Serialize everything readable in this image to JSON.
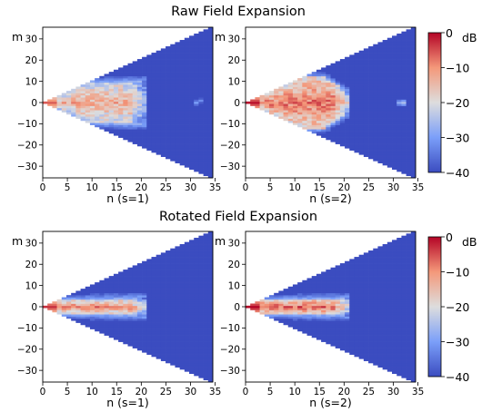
{
  "figure": {
    "row_titles": [
      "Raw Field Expansion",
      "Rotated Field Expansion"
    ],
    "colorbar": {
      "unit": "dB",
      "range": [
        -40,
        0
      ],
      "ticks": [
        0,
        -10,
        -20,
        -30,
        -40
      ],
      "tick_labels": [
        "0",
        "−10",
        "−20",
        "−30",
        "−40"
      ]
    },
    "colors": {
      "low": "#3b4cc0",
      "mid": "#dddddd",
      "high": "#b40426"
    }
  },
  "chart_data": [
    {
      "type": "heatmap",
      "title": "Raw Field Expansion",
      "xlabel": "n (s=1)",
      "ylabel": "m",
      "xlim": [
        0,
        35
      ],
      "ylim": [
        -35,
        35
      ],
      "xticks": [
        0,
        5,
        10,
        15,
        20,
        25,
        30,
        35
      ],
      "yticks": [
        30,
        20,
        10,
        0,
        -10,
        -20,
        -30
      ],
      "colorbar": {
        "label": "dB",
        "range": [
          -40,
          0
        ]
      },
      "domain": "|m| <= n",
      "pattern": "broad",
      "core": {
        "peak_db": -8,
        "extent_n": 21,
        "half_width_m": 9
      },
      "outliers": [
        {
          "n": 32,
          "m": 0,
          "db": -30
        },
        {
          "n": 33,
          "m": 1,
          "db": -32
        }
      ]
    },
    {
      "type": "heatmap",
      "xlabel": "n (s=2)",
      "ylabel": "m",
      "xlim": [
        0,
        35
      ],
      "ylim": [
        -35,
        35
      ],
      "xticks": [
        0,
        5,
        10,
        15,
        20,
        25,
        30,
        35
      ],
      "yticks": [
        30,
        20,
        10,
        0,
        -10,
        -20,
        -30
      ],
      "colorbar": {
        "label": "dB",
        "range": [
          -40,
          0
        ]
      },
      "domain": "|m| <= n",
      "pattern": "heart",
      "core": {
        "peak_db": -3,
        "extent_n": 21,
        "half_width_m": 12
      },
      "outliers": [
        {
          "n": 32,
          "m": 0,
          "db": -28
        },
        {
          "n": 33,
          "m": 0,
          "db": -25
        }
      ]
    },
    {
      "type": "heatmap",
      "title": "Rotated Field Expansion",
      "xlabel": "n (s=1)",
      "ylabel": "m",
      "xlim": [
        0,
        35
      ],
      "ylim": [
        -35,
        35
      ],
      "xticks": [
        0,
        5,
        10,
        15,
        20,
        25,
        30,
        35
      ],
      "yticks": [
        30,
        20,
        10,
        0,
        -10,
        -20,
        -30
      ],
      "colorbar": {
        "label": "dB",
        "range": [
          -40,
          0
        ]
      },
      "domain": "|m| <= n",
      "pattern": "narrow",
      "core": {
        "peak_db": -5,
        "extent_n": 21,
        "half_width_m": 3
      },
      "outliers": []
    },
    {
      "type": "heatmap",
      "xlabel": "n (s=2)",
      "ylabel": "m",
      "xlim": [
        0,
        35
      ],
      "ylim": [
        -35,
        35
      ],
      "xticks": [
        0,
        5,
        10,
        15,
        20,
        25,
        30,
        35
      ],
      "yticks": [
        30,
        20,
        10,
        0,
        -10,
        -20,
        -30
      ],
      "colorbar": {
        "label": "dB",
        "range": [
          -40,
          0
        ]
      },
      "domain": "|m| <= n",
      "pattern": "narrow",
      "core": {
        "peak_db": -2,
        "extent_n": 21,
        "half_width_m": 3
      },
      "outliers": []
    }
  ]
}
